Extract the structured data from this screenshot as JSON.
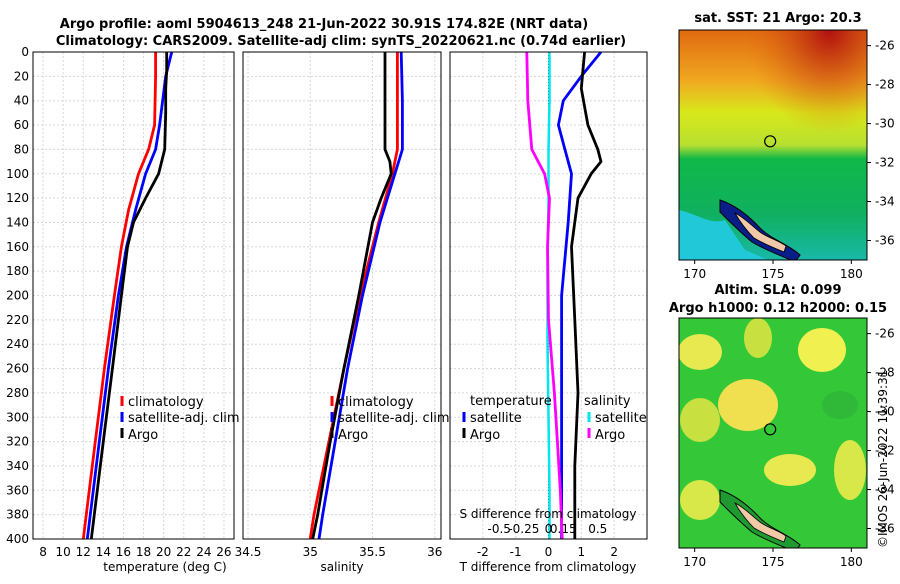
{
  "figure": {
    "title_line1": "Argo profile: aoml 5904613_248 21-Jun-2022 30.91S 174.82E (NRT data)",
    "title_line2": "Climatology: CARS2009. Satellite-adj clim: synTS_20220621.nc (0.74d earlier)",
    "timestamp": "©IMOS 26-Jun-2022 11:39:31"
  },
  "colors": {
    "climatology": "#ff0000",
    "satellite": "#0000ff",
    "argo": "#000000",
    "magenta": "#ff00ff",
    "cyan": "#00e5ee"
  },
  "chart_data": [
    {
      "name": "temperature-panel",
      "type": "line",
      "xlabel": "temperature (deg C)",
      "ylabel": "depth",
      "xlim": [
        7,
        27
      ],
      "ylim": [
        0,
        400
      ],
      "xticks": [
        8,
        10,
        12,
        14,
        16,
        18,
        20,
        22,
        24,
        26
      ],
      "yticks": [
        0,
        20,
        40,
        60,
        80,
        100,
        120,
        140,
        160,
        180,
        200,
        220,
        240,
        260,
        280,
        300,
        320,
        340,
        360,
        380,
        400
      ],
      "legend": [
        "climatology",
        "satellite-adj. clim",
        "Argo"
      ],
      "series": [
        {
          "name": "climatology",
          "depth": [
            0,
            20,
            60,
            80,
            100,
            130,
            160,
            200,
            260,
            320,
            380,
            400
          ],
          "values": [
            19.2,
            19.2,
            19.1,
            18.5,
            17.5,
            16.5,
            15.8,
            15.1,
            14.1,
            13.2,
            12.3,
            12.0
          ]
        },
        {
          "name": "satellite-adj. clim",
          "depth": [
            0,
            20,
            60,
            80,
            100,
            130,
            160,
            200,
            260,
            320,
            380,
            400
          ],
          "values": [
            20.8,
            20.2,
            19.6,
            19.2,
            18.2,
            17.2,
            16.3,
            15.5,
            14.5,
            13.6,
            12.7,
            12.4
          ]
        },
        {
          "name": "Argo",
          "depth": [
            0,
            15,
            30,
            50,
            80,
            100,
            120,
            140,
            160,
            200,
            260,
            320,
            380,
            400
          ],
          "values": [
            20.3,
            20.3,
            20.2,
            20.2,
            20.1,
            19.5,
            18.2,
            17.0,
            16.4,
            15.8,
            14.9,
            14.0,
            13.1,
            12.8
          ]
        }
      ]
    },
    {
      "name": "salinity-panel",
      "type": "line",
      "xlabel": "salinity",
      "ylabel": "depth",
      "xlim": [
        34.46,
        36.05
      ],
      "ylim": [
        0,
        400
      ],
      "xticks": [
        34.5,
        35,
        35.5,
        36
      ],
      "xticklabels": [
        "34.5",
        "35",
        "35.5",
        "36"
      ],
      "legend": [
        "climatology",
        "satellite-adj. clim",
        "Argo"
      ],
      "series": [
        {
          "name": "climatology",
          "depth": [
            0,
            40,
            80,
            100,
            140,
            200,
            260,
            320,
            380,
            400
          ],
          "values": [
            35.7,
            35.7,
            35.7,
            35.66,
            35.55,
            35.4,
            35.27,
            35.15,
            35.03,
            35.0
          ]
        },
        {
          "name": "satellite-adj. clim",
          "depth": [
            0,
            40,
            80,
            100,
            140,
            200,
            260,
            320,
            380,
            400
          ],
          "values": [
            35.73,
            35.74,
            35.74,
            35.68,
            35.56,
            35.42,
            35.3,
            35.2,
            35.1,
            35.07
          ]
        },
        {
          "name": "Argo",
          "depth": [
            0,
            30,
            60,
            80,
            90,
            100,
            120,
            140,
            200,
            260,
            320,
            380,
            400
          ],
          "values": [
            35.6,
            35.6,
            35.6,
            35.6,
            35.64,
            35.65,
            35.57,
            35.5,
            35.39,
            35.27,
            35.16,
            35.06,
            35.02
          ]
        }
      ]
    },
    {
      "name": "difference-panel",
      "type": "line",
      "xlabel": "T difference from climatology",
      "x2label": "S difference from climatology",
      "xlim": [
        -3,
        3
      ],
      "ylim": [
        0,
        400
      ],
      "xticks": [
        -2,
        -1,
        0,
        1,
        2
      ],
      "x2ticks": [
        -0.5,
        -0.25,
        0,
        0.15,
        0.5
      ],
      "x2ticklabels": [
        "-0.5",
        "-0.25",
        "0",
        "0.15",
        "0.5"
      ],
      "legend_left_title": "temperature",
      "legend_right_title": "salinity",
      "legend_left": [
        "satellite",
        "Argo"
      ],
      "legend_right": [
        "satellite",
        "Argo"
      ],
      "series": [
        {
          "name": "temperature satellite",
          "depth": [
            0,
            20,
            40,
            60,
            80,
            100,
            140,
            200,
            260,
            320,
            380,
            400
          ],
          "values": [
            1.6,
            1.0,
            0.45,
            0.3,
            0.5,
            0.7,
            0.6,
            0.4,
            0.4,
            0.4,
            0.4,
            0.4
          ]
        },
        {
          "name": "temperature Argo",
          "depth": [
            0,
            30,
            60,
            80,
            90,
            100,
            120,
            160,
            220,
            280,
            340,
            400
          ],
          "values": [
            1.1,
            1.0,
            1.2,
            1.5,
            1.6,
            1.3,
            0.9,
            0.7,
            0.8,
            0.9,
            0.8,
            0.8
          ]
        },
        {
          "name": "salinity satellite",
          "depth": [
            0,
            40,
            80,
            120,
            180,
            240,
            300,
            360,
            400
          ],
          "values": [
            0.01,
            0.01,
            0.0,
            0.0,
            -0.01,
            -0.01,
            0.0,
            0.01,
            0.01
          ]
        },
        {
          "name": "salinity Argo",
          "depth": [
            0,
            40,
            80,
            100,
            120,
            160,
            220,
            280,
            320,
            360,
            400
          ],
          "values": [
            -0.22,
            -0.21,
            -0.17,
            -0.04,
            0.01,
            -0.01,
            0.0,
            0.06,
            0.09,
            0.12,
            0.14
          ]
        }
      ]
    }
  ],
  "maps": {
    "sst": {
      "title": "sat. SST: 21 Argo: 20.3",
      "xlim": [
        169,
        181
      ],
      "ylim": [
        -37,
        -25.2
      ],
      "xticks": [
        170,
        175,
        180
      ],
      "yticks": [
        -26,
        -28,
        -30,
        -32,
        -34,
        -36
      ],
      "argo_position": [
        174.82,
        -30.91
      ]
    },
    "sla": {
      "title_line1": "Altim. SLA: 0.099",
      "title_line2": "Argo h1000: 0.12 h2000: 0.15",
      "xlim": [
        169,
        181
      ],
      "ylim": [
        -37,
        -25.2
      ],
      "xticks": [
        170,
        175,
        180
      ],
      "yticks": [
        -26,
        -28,
        -30,
        -32,
        -34,
        -36
      ],
      "argo_position": [
        174.82,
        -30.91
      ]
    }
  }
}
